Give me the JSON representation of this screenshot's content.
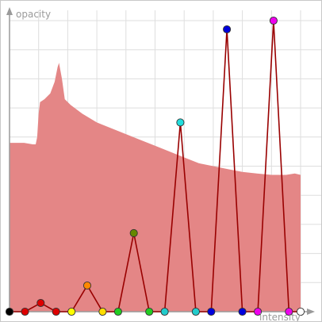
{
  "editor": {
    "y_axis_label": "opacity",
    "x_axis_label": "intensity"
  },
  "colors": {
    "histogram_fill": "#e48686",
    "grid": "#dedede",
    "axis": "#9a9a9a",
    "curve": "#990000",
    "point_outline": "#333333"
  },
  "histogram": {
    "x_range": [
      0,
      1
    ],
    "y_range": [
      0,
      1
    ],
    "points": [
      [
        0.0,
        0.58
      ],
      [
        0.02,
        0.58
      ],
      [
        0.05,
        0.58
      ],
      [
        0.08,
        0.575
      ],
      [
        0.09,
        0.575
      ],
      [
        0.095,
        0.6
      ],
      [
        0.1,
        0.68
      ],
      [
        0.105,
        0.72
      ],
      [
        0.12,
        0.73
      ],
      [
        0.14,
        0.75
      ],
      [
        0.155,
        0.79
      ],
      [
        0.165,
        0.84
      ],
      [
        0.17,
        0.855
      ],
      [
        0.18,
        0.8
      ],
      [
        0.19,
        0.73
      ],
      [
        0.21,
        0.71
      ],
      [
        0.25,
        0.68
      ],
      [
        0.3,
        0.65
      ],
      [
        0.35,
        0.63
      ],
      [
        0.4,
        0.61
      ],
      [
        0.45,
        0.59
      ],
      [
        0.5,
        0.57
      ],
      [
        0.55,
        0.55
      ],
      [
        0.6,
        0.53
      ],
      [
        0.65,
        0.51
      ],
      [
        0.7,
        0.5
      ],
      [
        0.75,
        0.49
      ],
      [
        0.8,
        0.48
      ],
      [
        0.85,
        0.475
      ],
      [
        0.9,
        0.47
      ],
      [
        0.95,
        0.47
      ],
      [
        0.98,
        0.475
      ],
      [
        1.0,
        0.47
      ]
    ]
  },
  "control_points": [
    {
      "intensity": 0.0,
      "opacity": 0.0,
      "color": "#000000"
    },
    {
      "intensity": 0.053,
      "opacity": 0.0,
      "color": "#dd0000"
    },
    {
      "intensity": 0.107,
      "opacity": 0.03,
      "color": "#dd0000"
    },
    {
      "intensity": 0.16,
      "opacity": 0.0,
      "color": "#dd0000"
    },
    {
      "intensity": 0.213,
      "opacity": 0.0,
      "color": "#ffff00"
    },
    {
      "intensity": 0.267,
      "opacity": 0.09,
      "color": "#ff8800"
    },
    {
      "intensity": 0.32,
      "opacity": 0.0,
      "color": "#ffdd00"
    },
    {
      "intensity": 0.373,
      "opacity": 0.0,
      "color": "#22cc22"
    },
    {
      "intensity": 0.427,
      "opacity": 0.27,
      "color": "#668800"
    },
    {
      "intensity": 0.48,
      "opacity": 0.0,
      "color": "#22cc22"
    },
    {
      "intensity": 0.533,
      "opacity": 0.0,
      "color": "#22cccc"
    },
    {
      "intensity": 0.587,
      "opacity": 0.65,
      "color": "#22dddd"
    },
    {
      "intensity": 0.64,
      "opacity": 0.0,
      "color": "#22cccc"
    },
    {
      "intensity": 0.693,
      "opacity": 0.0,
      "color": "#0000dd"
    },
    {
      "intensity": 0.747,
      "opacity": 0.97,
      "color": "#0000dd"
    },
    {
      "intensity": 0.8,
      "opacity": 0.0,
      "color": "#0000dd"
    },
    {
      "intensity": 0.853,
      "opacity": 0.0,
      "color": "#ee00ee"
    },
    {
      "intensity": 0.907,
      "opacity": 1.0,
      "color": "#ee00ee"
    },
    {
      "intensity": 0.96,
      "opacity": 0.0,
      "color": "#ee00ee"
    },
    {
      "intensity": 1.0,
      "opacity": 0.0,
      "color": "#ffffff"
    }
  ]
}
